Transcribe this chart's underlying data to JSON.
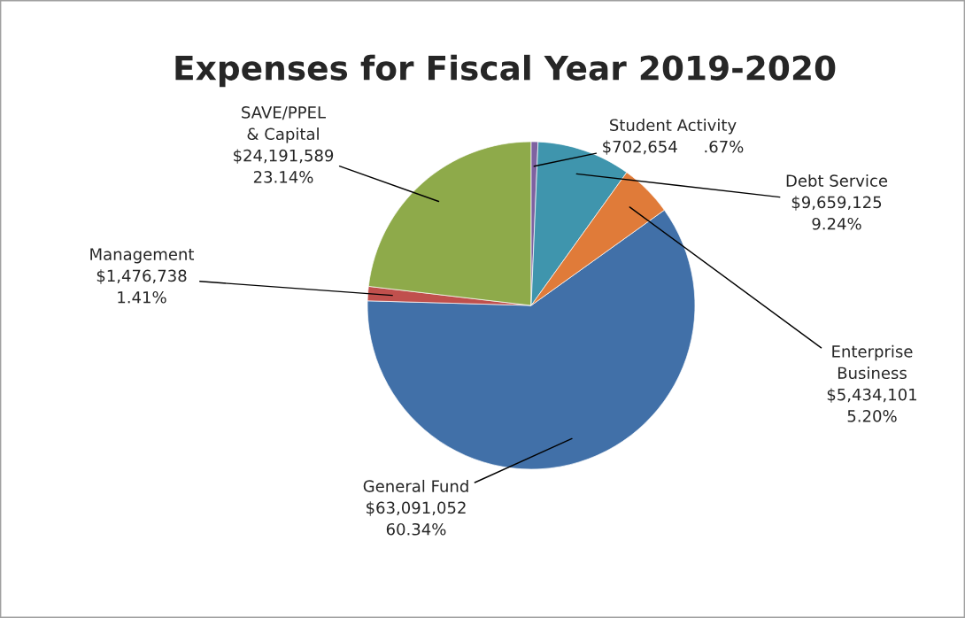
{
  "chart_data": {
    "type": "pie",
    "title": "Expenses for Fiscal Year 2019-2020",
    "categories": [
      "General Fund",
      "Management",
      "SAVE/PPEL\n& Capital",
      "Student Activity",
      "Debt Service",
      "Enterprise\nBusiness"
    ],
    "values": [
      63091052,
      1476738,
      24191589,
      702654,
      9659125,
      5434101
    ],
    "value_labels": [
      "$63,091,052\n60.34%",
      "$1,476,738\n1.41%",
      "$24,191,589\n23.14%",
      "$702,654     .67%",
      "$9,659,125\n9.24%",
      "$5,434,101\n5.20%"
    ],
    "colors": [
      "#4170a8",
      "#c0504d",
      "#8eaa4a",
      "#7e62a1",
      "#3f95ad",
      "#e07b39"
    ],
    "legend": false
  }
}
